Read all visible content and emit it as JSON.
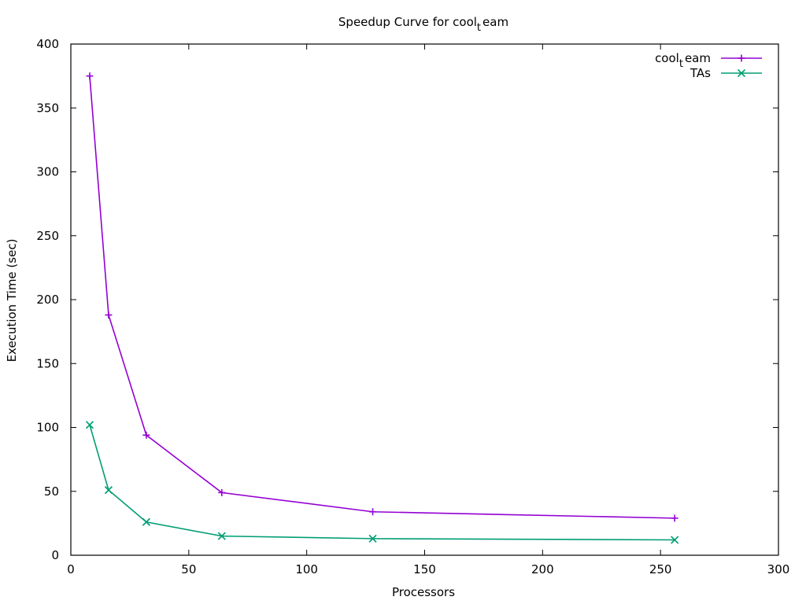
{
  "chart_data": {
    "type": "line",
    "title_main": "Speedup Curve for cool",
    "title_sub": "t",
    "title_tail": "eam",
    "xlabel": "Processors",
    "ylabel": "Execution Time (sec)",
    "xlim": [
      0,
      300
    ],
    "ylim": [
      0,
      400
    ],
    "xticks": [
      0,
      50,
      100,
      150,
      200,
      250,
      300
    ],
    "yticks": [
      0,
      50,
      100,
      150,
      200,
      250,
      300,
      350,
      400
    ],
    "grid": false,
    "legend_position": "top-right",
    "series": [
      {
        "name_main": "cool",
        "name_sub": "t",
        "name_tail": "eam",
        "color": "#9400d3",
        "marker": "plus",
        "x": [
          8,
          16,
          32,
          64,
          128,
          256
        ],
        "y": [
          375,
          188,
          94,
          49,
          34,
          29
        ]
      },
      {
        "name_main": "TAs",
        "color": "#009e73",
        "marker": "cross",
        "x": [
          8,
          16,
          32,
          64,
          128,
          256
        ],
        "y": [
          102,
          51,
          26,
          15,
          13,
          12
        ]
      }
    ]
  }
}
